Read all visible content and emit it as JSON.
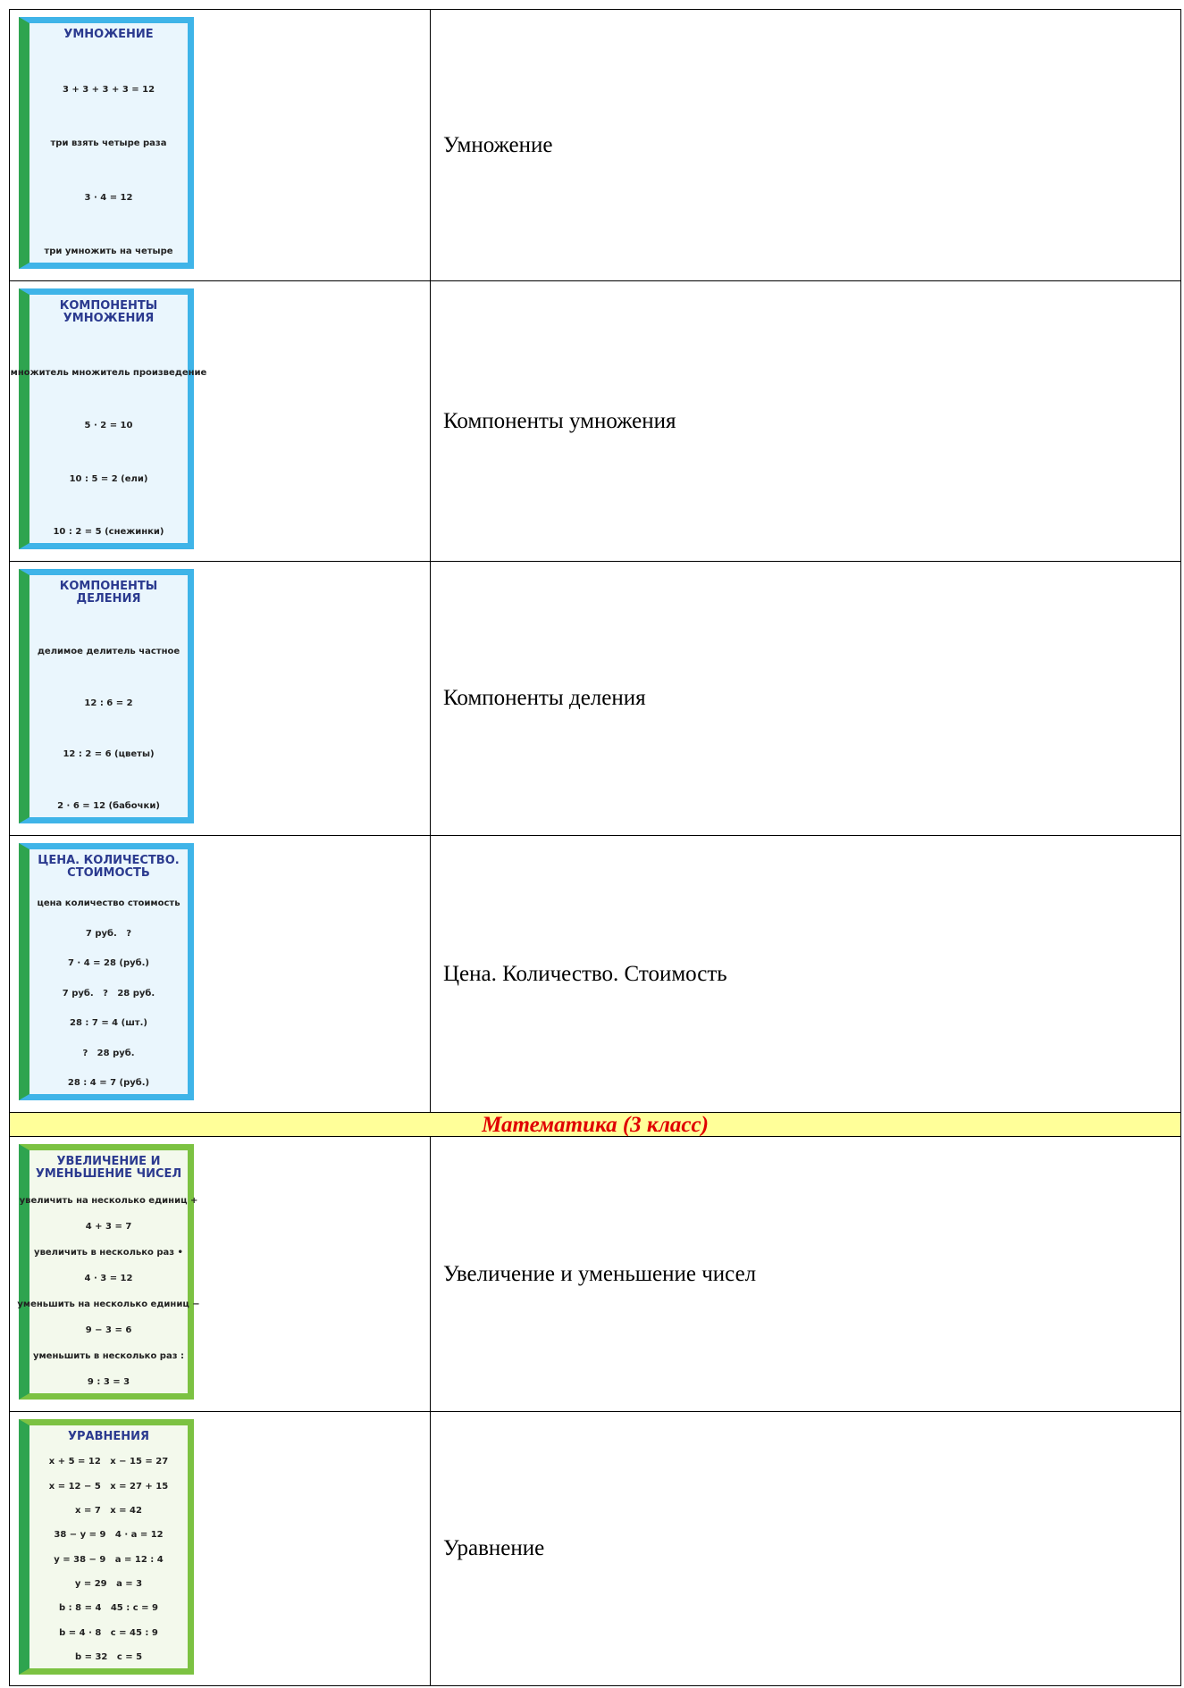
{
  "rows": [
    {
      "poster": {
        "title": "УМНОЖЕНИЕ",
        "lines": [
          "3 + 3 + 3 + 3 = 12",
          "три взять четыре раза",
          "3 · 4 = 12",
          "три умножить на четыре"
        ]
      },
      "caption": "Умножение"
    },
    {
      "poster": {
        "title": "КОМПОНЕНТЫ УМНОЖЕНИЯ",
        "lines": [
          "множитель множитель произведение",
          "5 · 2 = 10",
          "10 : 5 = 2 (ели)",
          "10 : 2 = 5 (снежинки)"
        ]
      },
      "caption": "Компоненты умножения"
    },
    {
      "poster": {
        "title": "КОМПОНЕНТЫ ДЕЛЕНИЯ",
        "lines": [
          "делимое делитель частное",
          "12 : 6 = 2",
          "12 : 2 = 6 (цветы)",
          "2 · 6 = 12 (бабочки)"
        ]
      },
      "caption": "Компоненты деления"
    },
    {
      "poster": {
        "title": "ЦЕНА. КОЛИЧЕСТВО. СТОИМОСТЬ",
        "lines": [
          "цена количество стоимость",
          "7 руб.   ?",
          "7 · 4 = 28 (руб.)",
          "7 руб.   ?   28 руб.",
          "28 : 7 = 4 (шт.)",
          "?   28 руб.",
          "28 : 4 = 7 (руб.)"
        ]
      },
      "caption": "Цена. Количество. Стоимость"
    },
    {
      "section": "Математика (3 класс)"
    },
    {
      "poster": {
        "title": "УВЕЛИЧЕНИЕ И УМЕНЬШЕНИЕ ЧИСЕЛ",
        "lines": [
          "увеличить на несколько единиц +",
          "4 + 3 = 7",
          "увеличить в несколько раз •",
          "4 · 3 = 12",
          "уменьшить на несколько единиц −",
          "9 − 3 = 6",
          "уменьшить в несколько раз :",
          "9 : 3 = 3"
        ]
      },
      "caption": "Увеличение и уменьшение чисел"
    },
    {
      "poster": {
        "title": "УРАВНЕНИЯ",
        "lines": [
          "x + 5 = 12   x − 15 = 27",
          "x = 12 − 5   x = 27 + 15",
          "x = 7   x = 42",
          "38 − y = 9   4 · a = 12",
          "y = 38 − 9   a = 12 : 4",
          "y = 29   a = 3",
          "b : 8 = 4   45 : c = 9",
          "b = 4 · 8   c = 45 : 9",
          "b = 32   c = 5"
        ]
      },
      "caption": "Уравнение"
    }
  ]
}
